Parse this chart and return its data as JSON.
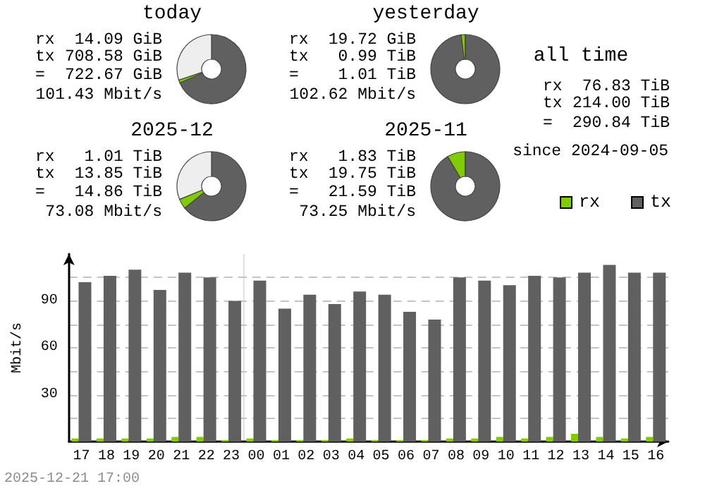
{
  "chart_data": [
    {
      "type": "donut",
      "title": "today",
      "categories": [
        null,
        null,
        null
      ],
      "values": [
        68.5,
        1.4,
        30.1
      ],
      "colors": [
        "#606060",
        "#80cc00",
        "#eeeeee"
      ],
      "annotations": [
        "rx",
        "14.09 GiB",
        "tx",
        "708.58 GiB",
        "=",
        "722.67 GiB",
        "101.43 Mbit/s"
      ]
    },
    {
      "type": "donut",
      "title": "yesterday",
      "categories": [
        null,
        null,
        null
      ],
      "values": [
        98.1,
        1.9,
        0
      ],
      "colors": [
        "#606060",
        "#80cc00",
        "#eeeeee"
      ],
      "annotations": [
        "rx",
        "19.72 GiB",
        "tx",
        "0.99 TiB",
        "=",
        "1.01 TiB",
        "102.62 Mbit/s"
      ]
    },
    {
      "type": "other",
      "title": "all time",
      "annotations": [
        "rx",
        "76.83 TiB",
        "tx",
        "214.00 TiB",
        "=",
        "290.84 TiB",
        "since 2024-09-05"
      ]
    },
    {
      "type": "donut",
      "title": "2025-12",
      "categories": [
        null,
        null,
        null
      ],
      "values": [
        64.1,
        4.7,
        31.2
      ],
      "colors": [
        "#606060",
        "#80cc00",
        "#eeeeee"
      ],
      "annotations": [
        "rx",
        "1.01 TiB",
        "tx",
        "13.85 TiB",
        "=",
        "14.86 TiB",
        "73.08 Mbit/s"
      ]
    },
    {
      "type": "donut",
      "title": "2025-11",
      "categories": [
        null,
        null,
        null
      ],
      "values": [
        91.5,
        8.5,
        0
      ],
      "colors": [
        "#606060",
        "#80cc00",
        "#eeeeee"
      ],
      "annotations": [
        "rx",
        "1.83 TiB",
        "tx",
        "19.75 TiB",
        "=",
        "21.59 TiB",
        "73.25 Mbit/s"
      ]
    },
    {
      "type": "bar",
      "ylabel": "Mbit/s",
      "categories": [
        "17",
        "18",
        "19",
        "20",
        "21",
        "22",
        "23",
        "00",
        "01",
        "02",
        "03",
        "04",
        "05",
        "06",
        "07",
        "08",
        "09",
        "10",
        "11",
        "12",
        "13",
        "14",
        "15",
        "16"
      ],
      "series": [
        {
          "name": "rx",
          "color": "#80cc00",
          "values": [
            2,
            2,
            2,
            2,
            3,
            3,
            1,
            2,
            1,
            1,
            1,
            2,
            1,
            1,
            1,
            2,
            2,
            3,
            2,
            3,
            5,
            3,
            2,
            3
          ]
        },
        {
          "name": "tx",
          "color": "#606060",
          "values": [
            102,
            106,
            110,
            97,
            108,
            105,
            90,
            103,
            85,
            94,
            88,
            96,
            94,
            83,
            78,
            105,
            103,
            100,
            106,
            105,
            108,
            113,
            108,
            108
          ]
        }
      ],
      "ylim": [
        0,
        120
      ],
      "yticks": [
        {
          "value": 15,
          "label": null
        },
        30,
        {
          "value": 45,
          "label": null
        },
        60,
        {
          "value": 75,
          "label": null
        },
        90,
        {
          "value": 105,
          "label": null
        }
      ],
      "grid": "y",
      "legend": "top right",
      "ref_lines": [
        {
          "axis": "x",
          "value": "00",
          "color": "#e0e0e0"
        }
      ],
      "annotations": [
        "2025-12-21 17:00"
      ]
    }
  ]
}
